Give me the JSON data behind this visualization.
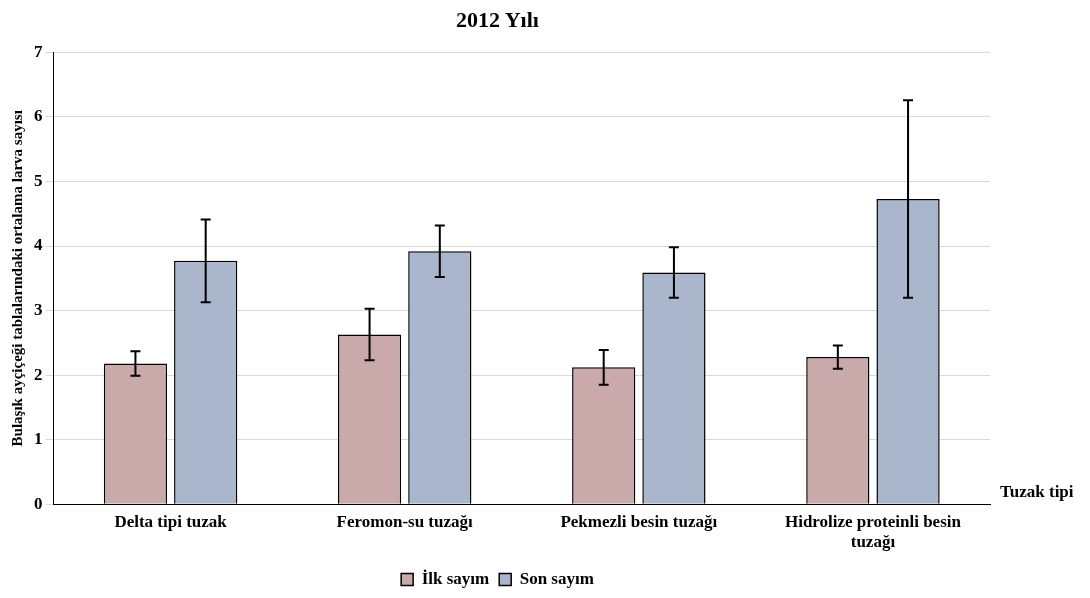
{
  "chart_data": {
    "type": "bar",
    "title": "2012 Yılı",
    "xlabel": "Tuzak tipi",
    "ylabel": "Bulaşık ayçiçeği tablalarındaki ortalama larva sayısı",
    "categories": [
      "Delta tipi tuzak",
      "Feromon-su tuzağı",
      "Pekmezli besin tuzağı",
      "Hidrolize proteinli besin tuzağı"
    ],
    "series": [
      {
        "name": "İlk sayım",
        "color": "#c9a9a9",
        "values": [
          2.18,
          2.63,
          2.12,
          2.28
        ],
        "errors": [
          0.19,
          0.4,
          0.27,
          0.18
        ]
      },
      {
        "name": "Son sayım",
        "color": "#a9b6cc",
        "values": [
          3.77,
          3.92,
          3.59,
          4.73
        ],
        "errors": [
          0.64,
          0.4,
          0.39,
          1.53
        ]
      }
    ],
    "ylim": [
      0,
      7
    ],
    "yticks": [
      0,
      1,
      2,
      3,
      4,
      5,
      6,
      7
    ],
    "grid": "y",
    "legend": "bottom"
  }
}
